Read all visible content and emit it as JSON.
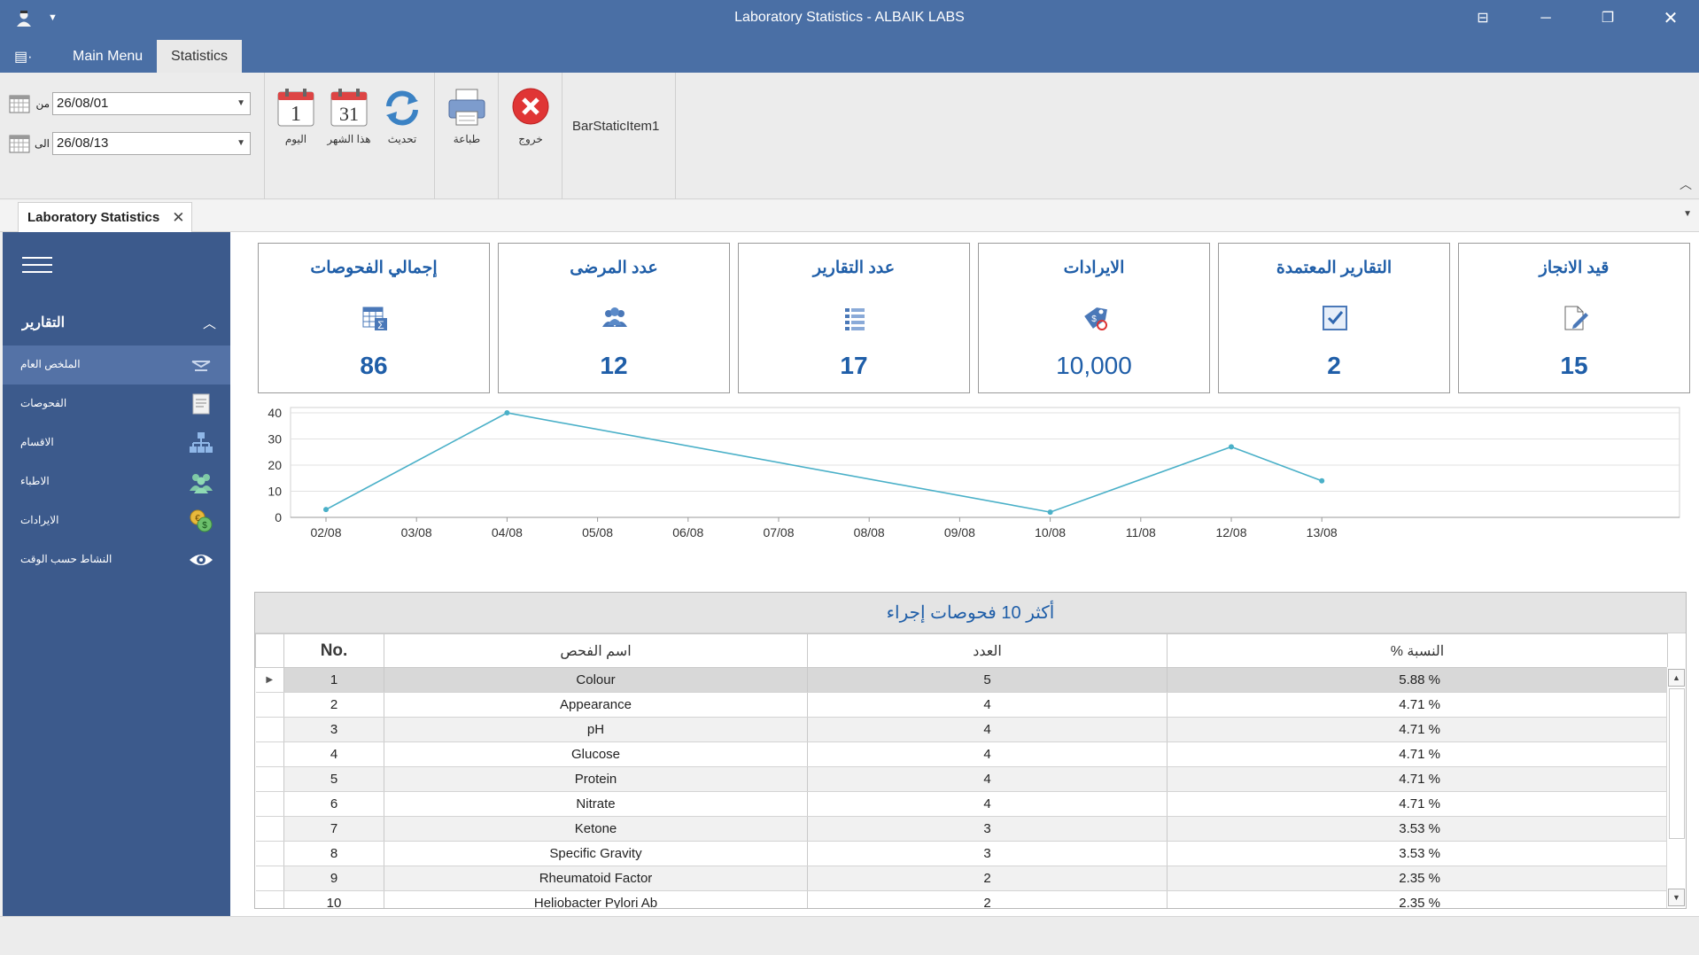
{
  "window": {
    "title": "Laboratory Statistics - ALBAIK LABS"
  },
  "ribbon": {
    "tabs": [
      {
        "label": "Main Menu",
        "active": false
      },
      {
        "label": "Statistics",
        "active": true
      }
    ],
    "from_label": "من",
    "to_label": "الى",
    "from_date": "26/08/01",
    "to_date": "26/08/13",
    "today_label": "اليوم",
    "today_icon_text": "1",
    "month_label": "هذا الشهر",
    "month_icon_text": "31",
    "refresh_label": "تحديث",
    "print_label": "طباعة",
    "exit_label": "خروج",
    "bar_static": "BarStaticItem1"
  },
  "document_tab": {
    "label": "Laboratory Statistics"
  },
  "sidebar": {
    "header": "التقارير",
    "items": [
      {
        "label": "الملخص العام",
        "icon": "summary-icon",
        "active": true
      },
      {
        "label": "الفحوصات",
        "icon": "tests-icon",
        "active": false
      },
      {
        "label": "الاقسام",
        "icon": "departments-icon",
        "active": false
      },
      {
        "label": "الاطباء",
        "icon": "doctors-icon",
        "active": false
      },
      {
        "label": "الايرادات",
        "icon": "revenue-icon",
        "active": false
      },
      {
        "label": "النشاط حسب الوقت",
        "icon": "eye-icon",
        "active": false
      }
    ]
  },
  "kpis": [
    {
      "title": "إجمالي الفحوصات",
      "value": "86",
      "icon": "table-sum-icon"
    },
    {
      "title": "عدد المرضى",
      "value": "12",
      "icon": "patients-icon"
    },
    {
      "title": "عدد التقارير",
      "value": "17",
      "icon": "list-icon"
    },
    {
      "title": "الايرادات",
      "value": "10,000",
      "icon": "price-tag-icon"
    },
    {
      "title": "التقارير المعتمدة",
      "value": "2",
      "icon": "checkbox-icon"
    },
    {
      "title": "قيد الانجاز",
      "value": "15",
      "icon": "edit-document-icon"
    }
  ],
  "colors": {
    "title_bar": "#4a6fa5",
    "sidebar": "#3c5a8c",
    "accent": "#1f5ea8",
    "line": "#4ab0c8"
  },
  "chart_data": {
    "type": "line",
    "categories": [
      "02/08",
      "03/08",
      "04/08",
      "05/08",
      "06/08",
      "07/08",
      "08/08",
      "09/08",
      "10/08",
      "11/08",
      "12/08",
      "13/08"
    ],
    "points": [
      {
        "x": "02/08",
        "y": 3
      },
      {
        "x": "04/08",
        "y": 40
      },
      {
        "x": "10/08",
        "y": 2
      },
      {
        "x": "12/08",
        "y": 27
      },
      {
        "x": "13/08",
        "y": 14
      }
    ],
    "yticks": [
      0,
      10,
      20,
      30,
      40
    ],
    "ylim": [
      0,
      40
    ],
    "grid": true
  },
  "top_tests": {
    "caption": "أكثر 10 فحوصات إجراء",
    "headers": {
      "no": "No.",
      "name": "اسم الفحص",
      "count": "العدد",
      "pct": "% النسبة"
    },
    "rows": [
      {
        "no": "1",
        "name": "Colour",
        "count": "5",
        "pct": "5.88 %"
      },
      {
        "no": "2",
        "name": "Appearance",
        "count": "4",
        "pct": "4.71 %"
      },
      {
        "no": "3",
        "name": "pH",
        "count": "4",
        "pct": "4.71 %"
      },
      {
        "no": "4",
        "name": "Glucose",
        "count": "4",
        "pct": "4.71 %"
      },
      {
        "no": "5",
        "name": "Protein",
        "count": "4",
        "pct": "4.71 %"
      },
      {
        "no": "6",
        "name": "Nitrate",
        "count": "4",
        "pct": "4.71 %"
      },
      {
        "no": "7",
        "name": "Ketone",
        "count": "3",
        "pct": "3.53 %"
      },
      {
        "no": "8",
        "name": "Specific Gravity",
        "count": "3",
        "pct": "3.53 %"
      },
      {
        "no": "9",
        "name": "Rheumatoid Factor",
        "count": "2",
        "pct": "2.35 %"
      },
      {
        "no": "10",
        "name": "Heliobacter Pylori Ab",
        "count": "2",
        "pct": "2.35 %"
      }
    ]
  }
}
